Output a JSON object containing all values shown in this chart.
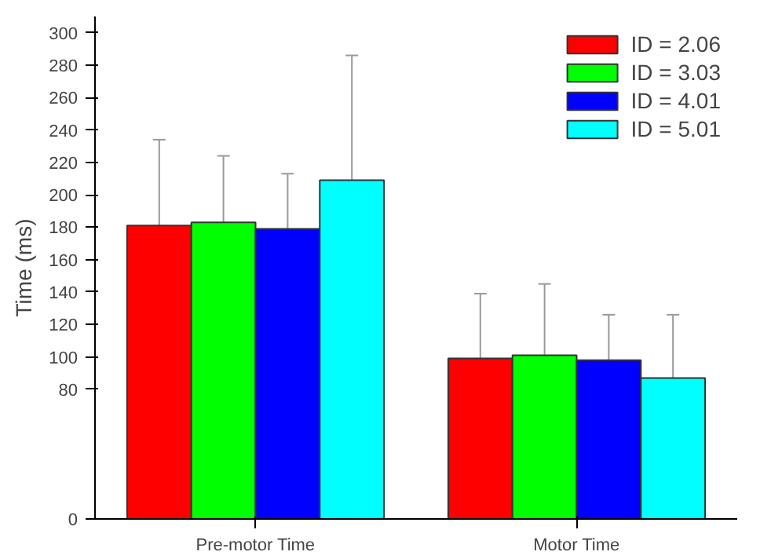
{
  "chart_data": {
    "type": "bar",
    "ylabel": "Time (ms)",
    "categories": [
      "Pre-motor Time",
      "Motor Time"
    ],
    "series": [
      {
        "name": "ID = 2.06",
        "color": "#ff0000",
        "values": [
          181,
          99
        ],
        "errors": [
          [
            181,
            234
          ],
          [
            99,
            139
          ]
        ]
      },
      {
        "name": "ID = 3.03",
        "color": "#00ff00",
        "values": [
          183,
          101
        ],
        "errors": [
          [
            183,
            224
          ],
          [
            101,
            145
          ]
        ]
      },
      {
        "name": "ID = 4.01",
        "color": "#0000ff",
        "values": [
          179,
          98
        ],
        "errors": [
          [
            179,
            213
          ],
          [
            98,
            126
          ]
        ]
      },
      {
        "name": "ID = 5.01",
        "color": "#00ffff",
        "values": [
          209,
          87
        ],
        "errors": [
          [
            209,
            286
          ],
          [
            87,
            126
          ]
        ]
      }
    ],
    "ylim": [
      0,
      310
    ],
    "yticks": [
      0,
      80,
      100,
      120,
      140,
      160,
      180,
      200,
      220,
      240,
      260,
      280,
      300
    ],
    "grid": false,
    "legend": "top right"
  }
}
